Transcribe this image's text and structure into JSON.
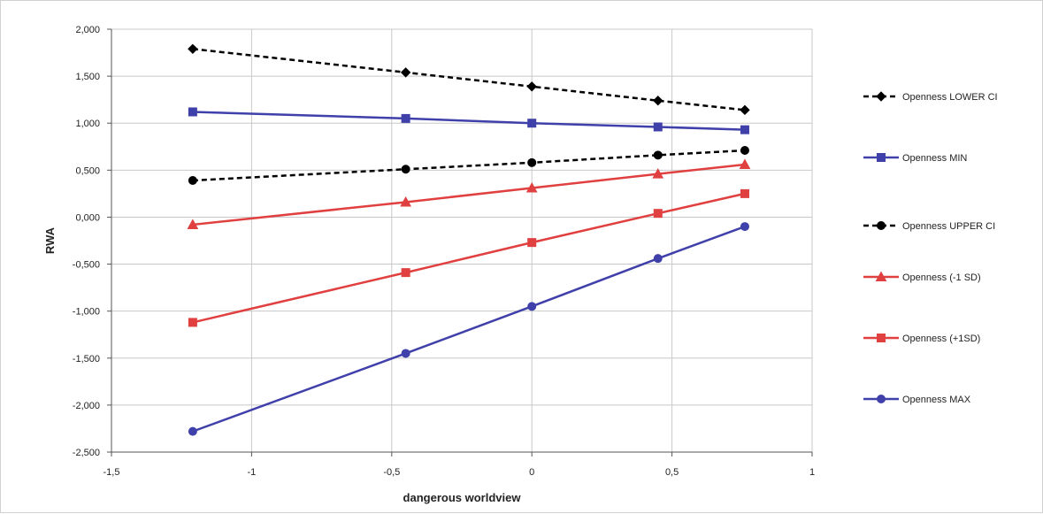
{
  "chart_data": {
    "type": "line",
    "title": "",
    "xlabel": "dangerous worldview",
    "ylabel": "RWA",
    "xlim": [
      -1.5,
      1
    ],
    "ylim": [
      -2.5,
      2
    ],
    "x_ticks": [
      -1.5,
      -1,
      -0.5,
      0,
      0.5,
      1
    ],
    "x_tick_labels": [
      "-1,5",
      "-1",
      "-0,5",
      "0",
      "0,5",
      "1"
    ],
    "y_ticks": [
      2,
      1.5,
      1,
      0.5,
      0,
      -0.5,
      -1,
      -1.5,
      -2,
      -2.5
    ],
    "y_tick_labels": [
      "2,000",
      "1,500",
      "1,000",
      "0,500",
      "0,000",
      "-0,500",
      "-1,000",
      "-1,500",
      "-2,000",
      "-2,500"
    ],
    "grid": true,
    "legend_position": "right",
    "x": [
      -1.21,
      -0.45,
      0,
      0.45,
      0.76
    ],
    "series": [
      {
        "name": "Openness LOWER CI",
        "values": [
          1.79,
          1.54,
          1.39,
          1.24,
          1.14
        ],
        "color": "#000000",
        "dashed": true,
        "marker": "diamond"
      },
      {
        "name": "Openness MIN",
        "values": [
          1.12,
          1.05,
          1.0,
          0.96,
          0.93
        ],
        "color": "#4040aa",
        "dashed": false,
        "marker": "square"
      },
      {
        "name": "Openness UPPER CI",
        "values": [
          0.39,
          0.51,
          0.58,
          0.66,
          0.71
        ],
        "color": "#000000",
        "dashed": true,
        "marker": "circle"
      },
      {
        "name": "Openness (-1 SD)",
        "values": [
          -0.08,
          0.16,
          0.31,
          0.46,
          0.56
        ],
        "color": "#e04040",
        "dashed": false,
        "marker": "triangle"
      },
      {
        "name": "Openness (+1SD)",
        "values": [
          -1.12,
          -0.59,
          -0.27,
          0.04,
          0.25
        ],
        "color": "#e04040",
        "dashed": false,
        "marker": "square"
      },
      {
        "name": "Openness MAX",
        "values": [
          -2.28,
          -1.45,
          -0.95,
          -0.44,
          -0.1
        ],
        "color": "#4040aa",
        "dashed": false,
        "marker": "circle"
      }
    ]
  }
}
